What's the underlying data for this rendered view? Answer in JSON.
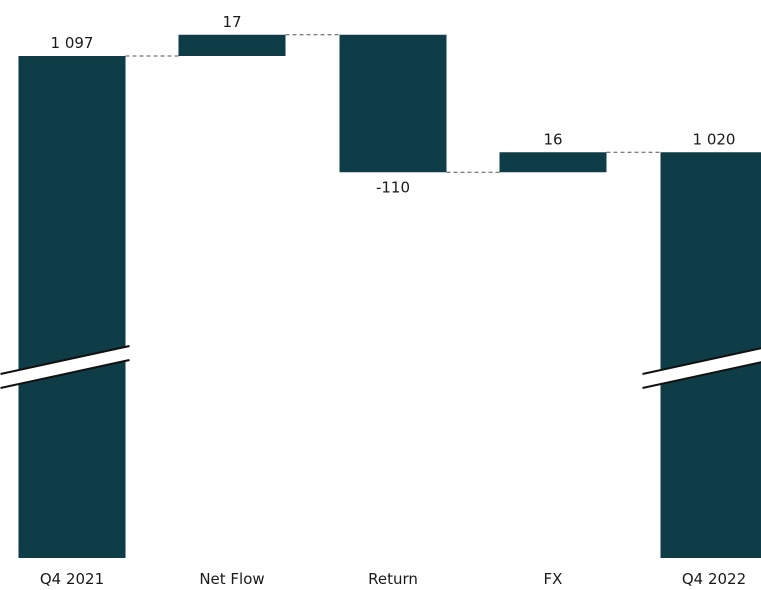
{
  "chart_data": {
    "type": "bar",
    "subtype": "waterfall",
    "title": "",
    "xlabel": "",
    "ylabel": "",
    "axis_break": true,
    "grid": false,
    "legend": "none",
    "bar_color": "#0e3d47",
    "connector_color": "#555555",
    "categories": [
      "Q4 2021",
      "Net Flow",
      "Return",
      "FX",
      "Q4 2022"
    ],
    "steps": [
      {
        "category": "Q4 2021",
        "kind": "total",
        "value": 1097,
        "label": "1 097"
      },
      {
        "category": "Net Flow",
        "kind": "delta",
        "value": 17,
        "label": "17"
      },
      {
        "category": "Return",
        "kind": "delta",
        "value": -110,
        "label": "-110"
      },
      {
        "category": "FX",
        "kind": "delta",
        "value": 16,
        "label": "16"
      },
      {
        "category": "Q4 2022",
        "kind": "total",
        "value": 1020,
        "label": "1 020"
      }
    ]
  }
}
